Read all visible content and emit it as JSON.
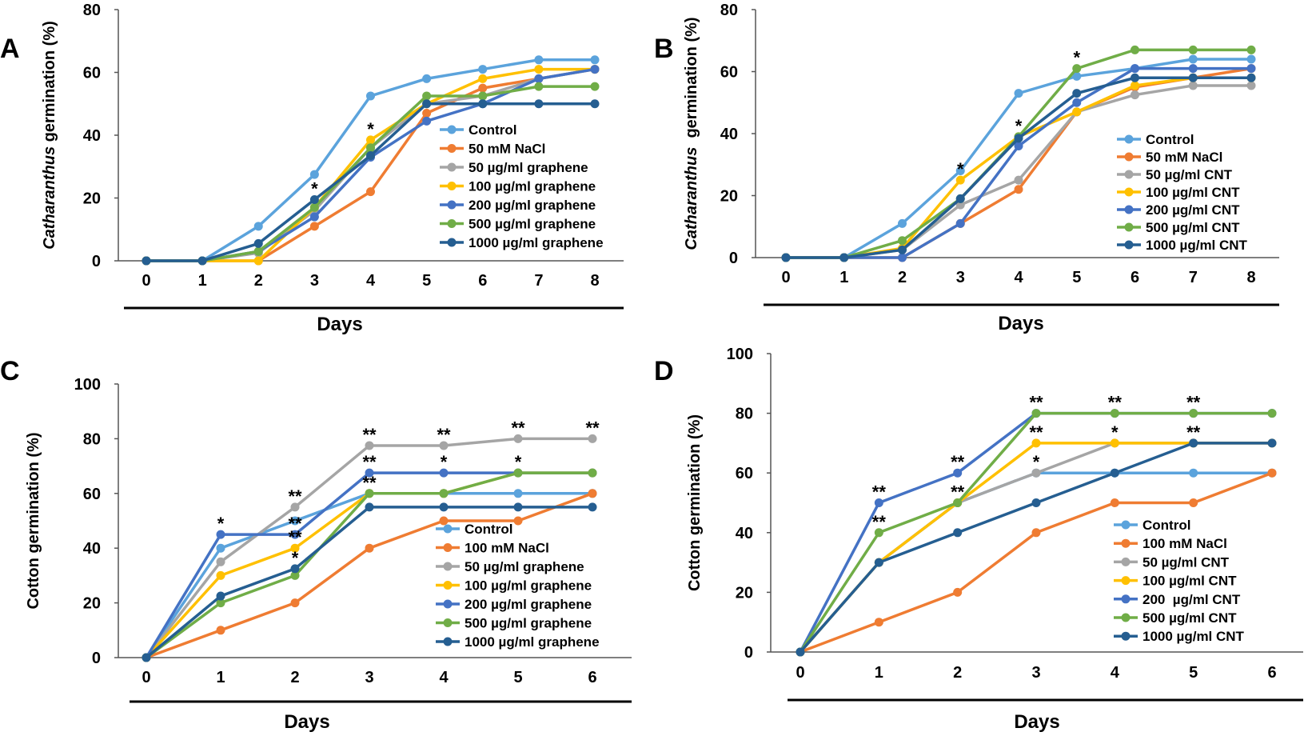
{
  "colors": {
    "Control": "#5ba3dc",
    "NaCl": "#ef7c32",
    "c50": "#a5a5a5",
    "c100": "#ffc000",
    "c200": "#4472c4",
    "c500": "#70ad47",
    "c1000": "#255e91"
  },
  "chart_data": [
    {
      "panel": "A",
      "type": "line",
      "xlabel": "Days",
      "ylabel_italic": "Catharanthus",
      "ylabel_rest": " germination (%)",
      "x": [
        0,
        1,
        2,
        3,
        4,
        5,
        6,
        7,
        8
      ],
      "xticks": [
        "0",
        "1",
        "2",
        "3",
        "4",
        "5",
        "6",
        "7",
        "8"
      ],
      "yticks": [
        "0",
        "20",
        "40",
        "60",
        "80"
      ],
      "ylim": [
        0,
        80
      ],
      "legend_location": "center-right",
      "series": [
        {
          "name": "Control",
          "color_key": "Control",
          "values": [
            0,
            0,
            11,
            27.5,
            52.5,
            58,
            61,
            64,
            64
          ]
        },
        {
          "name": "50 mM NaCl",
          "color_key": "NaCl",
          "values": [
            0,
            0,
            0,
            11,
            22,
            47,
            55,
            58,
            61
          ]
        },
        {
          "name": "50 µg/ml graphene",
          "color_key": "c50",
          "values": [
            0,
            0,
            2.5,
            16,
            36,
            50,
            52.5,
            58,
            61
          ]
        },
        {
          "name": "100 µg/ml graphene",
          "color_key": "c100",
          "values": [
            0,
            0,
            0,
            17,
            38.5,
            50,
            58,
            61,
            61
          ]
        },
        {
          "name": "200 µg/ml graphene",
          "color_key": "c200",
          "values": [
            0,
            0,
            3,
            14,
            33,
            44.5,
            50,
            58,
            61
          ]
        },
        {
          "name": "500 µg/ml graphene",
          "color_key": "c500",
          "values": [
            0,
            0,
            3,
            17,
            36,
            52.5,
            52.5,
            55.5,
            55.5
          ]
        },
        {
          "name": "1000 µg/ml graphene",
          "color_key": "c1000",
          "values": [
            0,
            0,
            5.5,
            19.5,
            33.5,
            50,
            50,
            50,
            50
          ]
        }
      ],
      "annotations": [
        {
          "x": 3,
          "y": 19.5,
          "text": "*"
        },
        {
          "x": 4,
          "y": 38.5,
          "text": "*"
        }
      ]
    },
    {
      "panel": "B",
      "type": "line",
      "xlabel": "Days",
      "ylabel_italic": "Catharanthus",
      "ylabel_rest": "  germination (%)",
      "x": [
        0,
        1,
        2,
        3,
        4,
        5,
        6,
        7,
        8
      ],
      "xticks": [
        "0",
        "1",
        "2",
        "3",
        "4",
        "5",
        "6",
        "7",
        "8"
      ],
      "yticks": [
        "0",
        "20",
        "40",
        "60",
        "80"
      ],
      "ylim": [
        0,
        80
      ],
      "legend_location": "center-right",
      "series": [
        {
          "name": "Control",
          "color_key": "Control",
          "values": [
            0,
            0,
            11,
            28,
            53,
            58.5,
            61,
            64,
            64
          ]
        },
        {
          "name": "50 mM NaCl",
          "color_key": "NaCl",
          "values": [
            0,
            0,
            0,
            11,
            22,
            47,
            55,
            58,
            61
          ]
        },
        {
          "name": "50 µg/ml CNT",
          "color_key": "c50",
          "values": [
            0,
            0,
            2.5,
            17,
            25,
            47,
            52.5,
            55.5,
            55.5
          ]
        },
        {
          "name": "100 µg/ml CNT",
          "color_key": "c100",
          "values": [
            0,
            0,
            3,
            25,
            39,
            47,
            55.5,
            58,
            58
          ]
        },
        {
          "name": "200 µg/ml CNT",
          "color_key": "c200",
          "values": [
            0,
            0,
            0,
            11,
            36,
            50,
            61,
            61,
            61
          ]
        },
        {
          "name": "500 µg/ml CNT",
          "color_key": "c500",
          "values": [
            0,
            0,
            5.5,
            19,
            39,
            61,
            67,
            67,
            67
          ]
        },
        {
          "name": "1000 µg/ml CNT",
          "color_key": "c1000",
          "values": [
            0,
            0,
            2.5,
            19,
            38.5,
            53,
            58,
            58,
            58
          ]
        }
      ],
      "annotations": [
        {
          "x": 3,
          "y": 25,
          "text": "*"
        },
        {
          "x": 4,
          "y": 39,
          "text": "*"
        },
        {
          "x": 5,
          "y": 61,
          "text": "*"
        }
      ]
    },
    {
      "panel": "C",
      "type": "line",
      "xlabel": "Days",
      "ylabel_italic": "",
      "ylabel_rest": "Cotton germination (%)",
      "x": [
        0,
        1,
        2,
        3,
        4,
        5,
        6
      ],
      "xticks": [
        "0",
        "1",
        "2",
        "3",
        "4",
        "5",
        "6"
      ],
      "yticks": [
        "0",
        "20",
        "40",
        "60",
        "80",
        "100"
      ],
      "ylim": [
        0,
        100
      ],
      "legend_location": "bottom-right",
      "series": [
        {
          "name": "Control",
          "color_key": "Control",
          "values": [
            0,
            40,
            50,
            60,
            60,
            60,
            60
          ]
        },
        {
          "name": "100 mM NaCl",
          "color_key": "NaCl",
          "values": [
            0,
            10,
            20,
            40,
            50,
            50,
            60
          ]
        },
        {
          "name": "50 µg/ml graphene",
          "color_key": "c50",
          "values": [
            0,
            35,
            55,
            77.5,
            77.5,
            80,
            80
          ]
        },
        {
          "name": "100 µg/ml graphene",
          "color_key": "c100",
          "values": [
            0,
            30,
            40,
            60,
            60,
            67.5,
            67.5
          ]
        },
        {
          "name": "200 µg/ml graphene",
          "color_key": "c200",
          "values": [
            0,
            45,
            45,
            67.5,
            67.5,
            67.5,
            67.5
          ]
        },
        {
          "name": "500 µg/ml graphene",
          "color_key": "c500",
          "values": [
            0,
            20,
            30,
            60,
            60,
            67.5,
            67.5
          ]
        },
        {
          "name": "1000 µg/ml graphene",
          "color_key": "c1000",
          "values": [
            0,
            22.5,
            32.5,
            55,
            55,
            55,
            55
          ]
        }
      ],
      "annotations": [
        {
          "x": 1,
          "y": 45,
          "text": "*"
        },
        {
          "x": 2,
          "y": 55,
          "text": "**"
        },
        {
          "x": 2,
          "y": 45,
          "text": "**"
        },
        {
          "x": 2,
          "y": 40,
          "text": "**"
        },
        {
          "x": 2,
          "y": 32.5,
          "text": "*"
        },
        {
          "x": 3,
          "y": 77.5,
          "text": "**"
        },
        {
          "x": 3,
          "y": 67.5,
          "text": "**"
        },
        {
          "x": 3,
          "y": 60,
          "text": "**"
        },
        {
          "x": 4,
          "y": 77.5,
          "text": "**"
        },
        {
          "x": 4,
          "y": 67.5,
          "text": "*"
        },
        {
          "x": 5,
          "y": 80,
          "text": "**"
        },
        {
          "x": 5,
          "y": 67.5,
          "text": "*"
        },
        {
          "x": 6,
          "y": 80,
          "text": "**"
        }
      ]
    },
    {
      "panel": "D",
      "type": "line",
      "xlabel": "Days",
      "ylabel_italic": "",
      "ylabel_rest": "Cotton germination (%)",
      "x": [
        0,
        1,
        2,
        3,
        4,
        5,
        6
      ],
      "xticks": [
        "0",
        "1",
        "2",
        "3",
        "4",
        "5",
        "6"
      ],
      "yticks": [
        "0",
        "20",
        "40",
        "60",
        "80",
        "100"
      ],
      "ylim": [
        0,
        100
      ],
      "legend_location": "bottom-right",
      "series": [
        {
          "name": "Control",
          "color_key": "Control",
          "values": [
            0,
            30,
            50,
            60,
            60,
            60,
            60
          ]
        },
        {
          "name": "100 mM NaCl",
          "color_key": "NaCl",
          "values": [
            0,
            10,
            20,
            40,
            50,
            50,
            60
          ]
        },
        {
          "name": "50 µg/ml CNT",
          "color_key": "c50",
          "values": [
            0,
            30,
            50,
            60,
            70,
            70,
            70
          ]
        },
        {
          "name": "100 µg/ml CNT",
          "color_key": "c100",
          "values": [
            0,
            30,
            50,
            70,
            70,
            70,
            70
          ]
        },
        {
          "name": "200  µg/ml CNT",
          "color_key": "c200",
          "values": [
            0,
            50,
            60,
            80,
            80,
            80,
            80
          ]
        },
        {
          "name": "500 µg/ml CNT",
          "color_key": "c500",
          "values": [
            0,
            40,
            50,
            80,
            80,
            80,
            80
          ]
        },
        {
          "name": "1000 µg/ml CNT",
          "color_key": "c1000",
          "values": [
            0,
            30,
            40,
            50,
            60,
            70,
            70
          ]
        }
      ],
      "annotations": [
        {
          "x": 1,
          "y": 50,
          "text": "**"
        },
        {
          "x": 1,
          "y": 40,
          "text": "**"
        },
        {
          "x": 2,
          "y": 60,
          "text": "**"
        },
        {
          "x": 2,
          "y": 50,
          "text": "**"
        },
        {
          "x": 3,
          "y": 80,
          "text": "**"
        },
        {
          "x": 3,
          "y": 70,
          "text": "**"
        },
        {
          "x": 3,
          "y": 60,
          "text": "*"
        },
        {
          "x": 4,
          "y": 80,
          "text": "**"
        },
        {
          "x": 4,
          "y": 70,
          "text": "*"
        },
        {
          "x": 5,
          "y": 80,
          "text": "**"
        },
        {
          "x": 5,
          "y": 70,
          "text": "**"
        }
      ]
    }
  ]
}
